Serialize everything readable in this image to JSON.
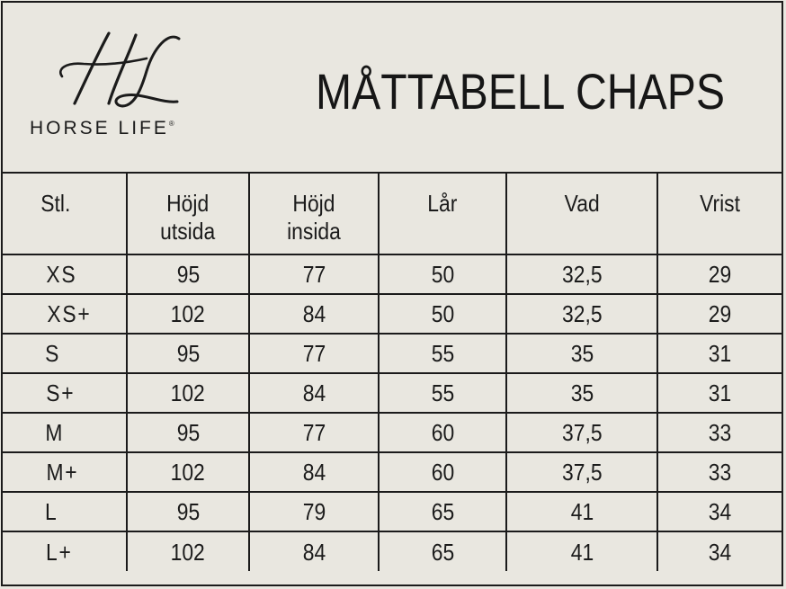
{
  "brand": {
    "monogram": "HL",
    "name": "HORSE LIFE",
    "registered": "®"
  },
  "title": "MÅTTABELL CHAPS",
  "table": {
    "headers": [
      [
        "Stl."
      ],
      [
        "Höjd",
        "utsida"
      ],
      [
        "Höjd",
        "insida"
      ],
      [
        "Lår"
      ],
      [
        "Vad"
      ],
      [
        "Vrist"
      ]
    ],
    "rows": [
      [
        "XS",
        "95",
        "77",
        "50",
        "32,5",
        "29"
      ],
      [
        "XS+",
        "102",
        "84",
        "50",
        "32,5",
        "29"
      ],
      [
        "S",
        "95",
        "77",
        "55",
        "35",
        "31"
      ],
      [
        "S+",
        "102",
        "84",
        "55",
        "35",
        "31"
      ],
      [
        "M",
        "95",
        "77",
        "60",
        "37,5",
        "33"
      ],
      [
        "M+",
        "102",
        "84",
        "60",
        "37,5",
        "33"
      ],
      [
        "L",
        "95",
        "79",
        "65",
        "41",
        "34"
      ],
      [
        "L+",
        "102",
        "84",
        "65",
        "41",
        "34"
      ]
    ]
  },
  "colors": {
    "background": "#e9e7e0",
    "ink": "#1b1b1b"
  }
}
